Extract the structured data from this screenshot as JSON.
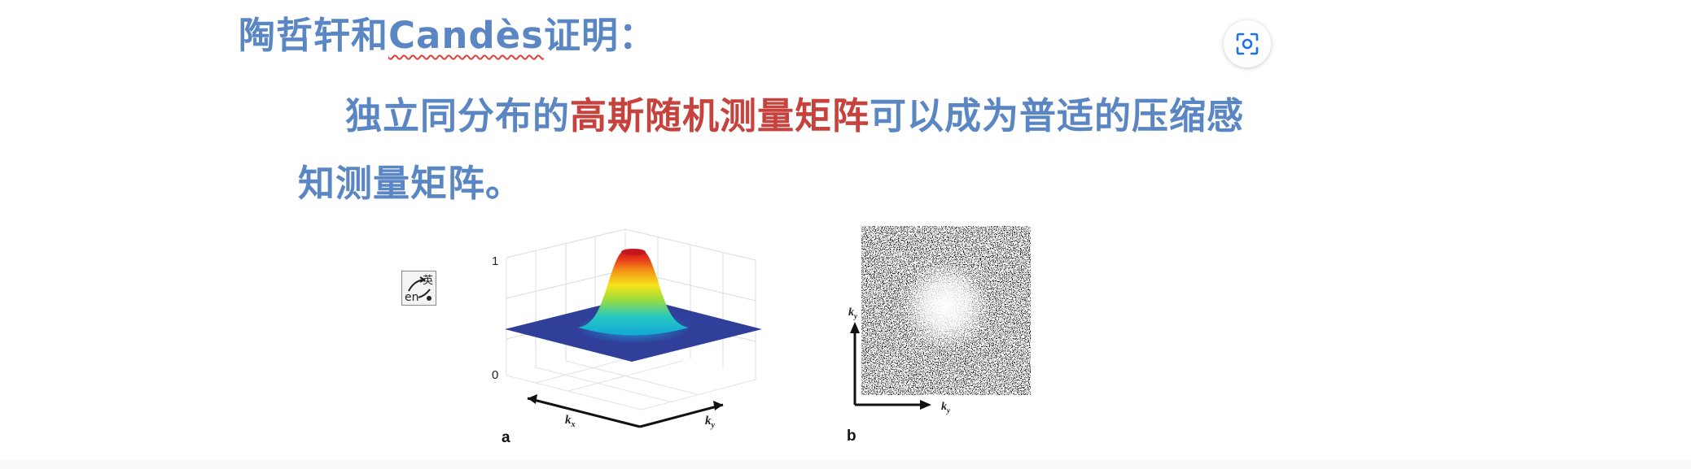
{
  "heading": {
    "part1": "陶哲轩和",
    "part2": "Candès",
    "part3": "证明："
  },
  "statement": {
    "line1_blue_a": "独立同分布的",
    "line1_red": "高斯随机测量矩阵",
    "line1_blue_b": "可以成为普适的压缩感",
    "line2": "知测量矩阵。"
  },
  "figure_a": {
    "label": "a",
    "z_tick_top": "1",
    "z_tick_bottom": "0",
    "axis_left_main": "k",
    "axis_left_sub": "x",
    "axis_right_main": "k",
    "axis_right_sub": "y"
  },
  "figure_b": {
    "label": "b",
    "axis_vert_main": "k",
    "axis_vert_sub": "y",
    "axis_horiz_main": "k",
    "axis_horiz_sub": "y"
  },
  "toolbar": {
    "lens_icon": "screenshot-search-icon",
    "translate_en": "en",
    "translate_zh": "英"
  },
  "colors": {
    "text_blue": "#5a86c4",
    "text_red": "#c8423d",
    "plane_blue": "#2f3f9a"
  }
}
